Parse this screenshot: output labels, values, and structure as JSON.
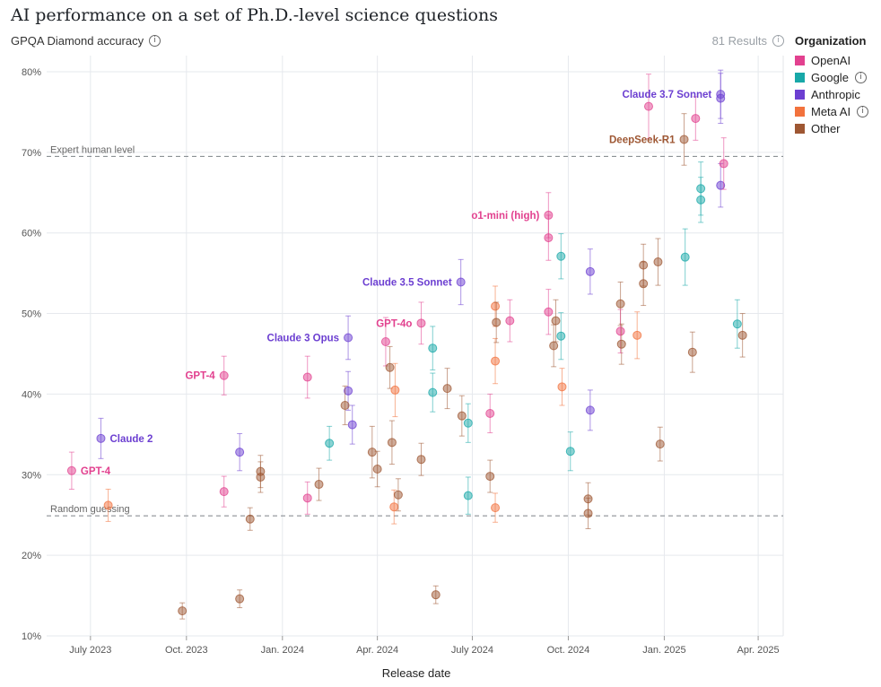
{
  "title": "AI performance on a set of Ph.D.-level science questions",
  "results_label": "81 Results",
  "chart_data": {
    "type": "scatter",
    "title": "AI performance on a set of Ph.D.-level science questions",
    "ylabel": "GPQA Diamond accuracy",
    "xlabel": "Release date",
    "ylim": [
      0.1,
      0.82
    ],
    "xlim": [
      "2023-05-20",
      "2025-04-25"
    ],
    "y_ticks": [
      {
        "value": 0.1,
        "label": "10%"
      },
      {
        "value": 0.2,
        "label": "20%"
      },
      {
        "value": 0.3,
        "label": "30%"
      },
      {
        "value": 0.4,
        "label": "40%"
      },
      {
        "value": 0.5,
        "label": "50%"
      },
      {
        "value": 0.6,
        "label": "60%"
      },
      {
        "value": 0.7,
        "label": "70%"
      },
      {
        "value": 0.8,
        "label": "80%"
      }
    ],
    "x_ticks": [
      {
        "date": "2023-07-01",
        "label": "July 2023"
      },
      {
        "date": "2023-10-01",
        "label": "Oct. 2023"
      },
      {
        "date": "2024-01-01",
        "label": "Jan. 2024"
      },
      {
        "date": "2024-04-01",
        "label": "Apr. 2024"
      },
      {
        "date": "2024-07-01",
        "label": "July 2024"
      },
      {
        "date": "2024-10-01",
        "label": "Oct. 2024"
      },
      {
        "date": "2025-01-01",
        "label": "Jan. 2025"
      },
      {
        "date": "2025-04-01",
        "label": "Apr. 2025"
      }
    ],
    "grid": true,
    "legend_position": "right",
    "legend_title": "Organization",
    "series": [
      {
        "name": "OpenAI",
        "color": "#e2418f",
        "has_info": false
      },
      {
        "name": "Google",
        "color": "#18a8a8",
        "has_info": true
      },
      {
        "name": "Anthropic",
        "color": "#6c3fd1",
        "has_info": false
      },
      {
        "name": "Meta AI",
        "color": "#f2723d",
        "has_info": true
      },
      {
        "name": "Other",
        "color": "#9e5733",
        "has_info": false
      }
    ],
    "reference_lines": [
      {
        "value": 0.695,
        "label": "Expert human level"
      },
      {
        "value": 0.249,
        "label": "Random guessing"
      }
    ],
    "points": [
      {
        "org": "OpenAI",
        "date": "2023-06-13",
        "value": 0.305,
        "err": 0.023,
        "label": "GPT-4",
        "label_side": "right"
      },
      {
        "org": "Anthropic",
        "date": "2023-07-11",
        "value": 0.345,
        "err": 0.025,
        "label": "Claude 2",
        "label_side": "right"
      },
      {
        "org": "Meta AI",
        "date": "2023-07-18",
        "value": 0.262,
        "err": 0.02
      },
      {
        "org": "Other",
        "date": "2023-09-27",
        "value": 0.131,
        "err": 0.01
      },
      {
        "org": "OpenAI",
        "date": "2023-11-06",
        "value": 0.423,
        "err": 0.024,
        "label": "GPT-4",
        "label_side": "left"
      },
      {
        "org": "OpenAI",
        "date": "2023-11-06",
        "value": 0.279,
        "err": 0.019
      },
      {
        "org": "Anthropic",
        "date": "2023-11-21",
        "value": 0.328,
        "err": 0.023
      },
      {
        "org": "Other",
        "date": "2023-11-21",
        "value": 0.146,
        "err": 0.011
      },
      {
        "org": "Other",
        "date": "2023-12-01",
        "value": 0.245,
        "err": 0.014
      },
      {
        "org": "Other",
        "date": "2023-12-11",
        "value": 0.304,
        "err": 0.02
      },
      {
        "org": "Other",
        "date": "2023-12-11",
        "value": 0.297,
        "err": 0.019
      },
      {
        "org": "OpenAI",
        "date": "2024-01-25",
        "value": 0.421,
        "err": 0.026
      },
      {
        "org": "OpenAI",
        "date": "2024-01-25",
        "value": 0.271,
        "err": 0.02
      },
      {
        "org": "Other",
        "date": "2024-02-05",
        "value": 0.288,
        "err": 0.02
      },
      {
        "org": "Google",
        "date": "2024-02-15",
        "value": 0.339,
        "err": 0.021
      },
      {
        "org": "Anthropic",
        "date": "2024-03-04",
        "value": 0.47,
        "err": 0.027,
        "label": "Claude 3 Opus",
        "label_side": "left"
      },
      {
        "org": "Anthropic",
        "date": "2024-03-04",
        "value": 0.404,
        "err": 0.024
      },
      {
        "org": "Other",
        "date": "2024-03-01",
        "value": 0.386,
        "err": 0.024
      },
      {
        "org": "Anthropic",
        "date": "2024-03-08",
        "value": 0.362,
        "err": 0.024
      },
      {
        "org": "Other",
        "date": "2024-03-27",
        "value": 0.328,
        "err": 0.032
      },
      {
        "org": "Other",
        "date": "2024-04-01",
        "value": 0.307,
        "err": 0.022
      },
      {
        "org": "OpenAI",
        "date": "2024-04-09",
        "value": 0.465,
        "err": 0.03
      },
      {
        "org": "Other",
        "date": "2024-04-13",
        "value": 0.433,
        "err": 0.026
      },
      {
        "org": "Meta AI",
        "date": "2024-04-18",
        "value": 0.405,
        "err": 0.033
      },
      {
        "org": "Other",
        "date": "2024-04-15",
        "value": 0.34,
        "err": 0.027
      },
      {
        "org": "Meta AI",
        "date": "2024-04-17",
        "value": 0.26,
        "err": 0.021
      },
      {
        "org": "Other",
        "date": "2024-04-21",
        "value": 0.275,
        "err": 0.02
      },
      {
        "org": "OpenAI",
        "date": "2024-05-13",
        "value": 0.488,
        "err": 0.026,
        "label": "GPT-4o",
        "label_side": "left"
      },
      {
        "org": "Other",
        "date": "2024-05-13",
        "value": 0.319,
        "err": 0.02
      },
      {
        "org": "Google",
        "date": "2024-05-24",
        "value": 0.457,
        "err": 0.027
      },
      {
        "org": "Google",
        "date": "2024-05-24",
        "value": 0.402,
        "err": 0.024
      },
      {
        "org": "Other",
        "date": "2024-05-27",
        "value": 0.151,
        "err": 0.011
      },
      {
        "org": "Other",
        "date": "2024-06-07",
        "value": 0.407,
        "err": 0.025
      },
      {
        "org": "Anthropic",
        "date": "2024-06-20",
        "value": 0.539,
        "err": 0.028,
        "label": "Claude 3.5 Sonnet",
        "label_side": "left"
      },
      {
        "org": "Other",
        "date": "2024-06-21",
        "value": 0.373,
        "err": 0.025
      },
      {
        "org": "Google",
        "date": "2024-06-27",
        "value": 0.364,
        "err": 0.024
      },
      {
        "org": "Google",
        "date": "2024-06-27",
        "value": 0.274,
        "err": 0.023
      },
      {
        "org": "OpenAI",
        "date": "2024-07-18",
        "value": 0.376,
        "err": 0.024
      },
      {
        "org": "Other",
        "date": "2024-07-18",
        "value": 0.298,
        "err": 0.02
      },
      {
        "org": "Meta AI",
        "date": "2024-07-23",
        "value": 0.509,
        "err": 0.025
      },
      {
        "org": "Meta AI",
        "date": "2024-07-23",
        "value": 0.441,
        "err": 0.028
      },
      {
        "org": "Meta AI",
        "date": "2024-07-23",
        "value": 0.259,
        "err": 0.018
      },
      {
        "org": "Other",
        "date": "2024-07-24",
        "value": 0.489,
        "err": 0.025
      },
      {
        "org": "OpenAI",
        "date": "2024-08-06",
        "value": 0.491,
        "err": 0.026
      },
      {
        "org": "OpenAI",
        "date": "2024-09-12",
        "value": 0.622,
        "err": 0.028,
        "label": "o1-mini (high)",
        "label_side": "left"
      },
      {
        "org": "OpenAI",
        "date": "2024-09-12",
        "value": 0.594,
        "err": 0.028
      },
      {
        "org": "OpenAI",
        "date": "2024-09-12",
        "value": 0.502,
        "err": 0.028
      },
      {
        "org": "Other",
        "date": "2024-09-19",
        "value": 0.491,
        "err": 0.026
      },
      {
        "org": "Other",
        "date": "2024-09-17",
        "value": 0.46,
        "err": 0.026
      },
      {
        "org": "Google",
        "date": "2024-09-24",
        "value": 0.571,
        "err": 0.028
      },
      {
        "org": "Google",
        "date": "2024-09-24",
        "value": 0.472,
        "err": 0.029
      },
      {
        "org": "Meta AI",
        "date": "2024-09-25",
        "value": 0.409,
        "err": 0.023
      },
      {
        "org": "Google",
        "date": "2024-10-03",
        "value": 0.329,
        "err": 0.024
      },
      {
        "org": "Other",
        "date": "2024-10-20",
        "value": 0.27,
        "err": 0.02
      },
      {
        "org": "Other",
        "date": "2024-10-20",
        "value": 0.252,
        "err": 0.019
      },
      {
        "org": "Anthropic",
        "date": "2024-10-22",
        "value": 0.552,
        "err": 0.028
      },
      {
        "org": "Anthropic",
        "date": "2024-10-22",
        "value": 0.38,
        "err": 0.025
      },
      {
        "org": "Other",
        "date": "2024-11-20",
        "value": 0.512,
        "err": 0.027
      },
      {
        "org": "OpenAI",
        "date": "2024-11-20",
        "value": 0.478,
        "err": 0.027
      },
      {
        "org": "Other",
        "date": "2024-11-21",
        "value": 0.462,
        "err": 0.025
      },
      {
        "org": "Meta AI",
        "date": "2024-12-06",
        "value": 0.473,
        "err": 0.029
      },
      {
        "org": "Other",
        "date": "2024-12-12",
        "value": 0.56,
        "err": 0.026
      },
      {
        "org": "Other",
        "date": "2024-12-12",
        "value": 0.537,
        "err": 0.027
      },
      {
        "org": "OpenAI",
        "date": "2024-12-17",
        "value": 0.757,
        "err": 0.04
      },
      {
        "org": "Other",
        "date": "2024-12-26",
        "value": 0.564,
        "err": 0.029
      },
      {
        "org": "Other",
        "date": "2024-12-28",
        "value": 0.338,
        "err": 0.021
      },
      {
        "org": "Other",
        "date": "2025-01-20",
        "value": 0.716,
        "err": 0.032,
        "label": "DeepSeek-R1",
        "label_side": "left"
      },
      {
        "org": "Google",
        "date": "2025-01-21",
        "value": 0.57,
        "err": 0.035
      },
      {
        "org": "OpenAI",
        "date": "2025-01-31",
        "value": 0.742,
        "err": 0.027
      },
      {
        "org": "Other",
        "date": "2025-01-28",
        "value": 0.452,
        "err": 0.025
      },
      {
        "org": "Google",
        "date": "2025-02-05",
        "value": 0.655,
        "err": 0.033
      },
      {
        "org": "Google",
        "date": "2025-02-05",
        "value": 0.641,
        "err": 0.028
      },
      {
        "org": "Anthropic",
        "date": "2025-02-24",
        "value": 0.772,
        "err": 0.03,
        "label": "Claude 3.7 Sonnet",
        "label_side": "left"
      },
      {
        "org": "Anthropic",
        "date": "2025-02-24",
        "value": 0.767,
        "err": 0.031
      },
      {
        "org": "Anthropic",
        "date": "2025-02-24",
        "value": 0.659,
        "err": 0.027
      },
      {
        "org": "OpenAI",
        "date": "2025-02-27",
        "value": 0.686,
        "err": 0.032
      },
      {
        "org": "Google",
        "date": "2025-03-12",
        "value": 0.487,
        "err": 0.03
      },
      {
        "org": "Other",
        "date": "2025-03-17",
        "value": 0.473,
        "err": 0.027
      }
    ]
  }
}
